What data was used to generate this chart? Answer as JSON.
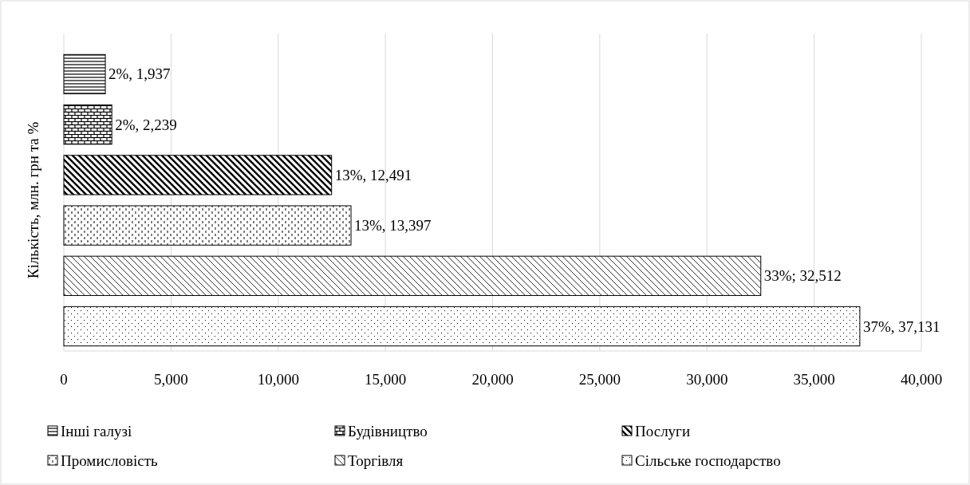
{
  "chart_data": {
    "type": "bar",
    "orientation": "horizontal",
    "ylabel": "Кількість, млн. грн та %",
    "categories": [
      null,
      null,
      null,
      null,
      null,
      null
    ],
    "series": [
      {
        "name": "Інші галузі",
        "color": "#000000",
        "values": [
          1937,
          null,
          null,
          null,
          null,
          null
        ],
        "value_labels": [
          "2%, 1,937",
          null,
          null,
          null,
          null,
          null
        ]
      },
      {
        "name": "Будівництво",
        "color": "#000000",
        "values": [
          null,
          2239,
          null,
          null,
          null,
          null
        ],
        "value_labels": [
          null,
          "2%, 2,239",
          null,
          null,
          null,
          null
        ]
      },
      {
        "name": "Послуги",
        "color": "#000000",
        "values": [
          null,
          null,
          12491,
          null,
          null,
          null
        ],
        "value_labels": [
          null,
          null,
          "13%, 12,491",
          null,
          null,
          null
        ]
      },
      {
        "name": "Промисловість",
        "color": "#000000",
        "values": [
          null,
          null,
          null,
          13397,
          null,
          null
        ],
        "value_labels": [
          null,
          null,
          null,
          "13%, 13,397",
          null,
          null
        ]
      },
      {
        "name": "Торгівля",
        "color": "#000000",
        "values": [
          null,
          null,
          null,
          null,
          32512,
          null
        ],
        "value_labels": [
          null,
          null,
          null,
          null,
          "33%; 32,512",
          null
        ]
      },
      {
        "name": "Сільське господарство",
        "color": "#000000",
        "values": [
          null,
          null,
          null,
          null,
          null,
          37131
        ],
        "value_labels": [
          null,
          null,
          null,
          null,
          null,
          "37%, 37,131"
        ]
      }
    ],
    "xlim": [
      0,
      40000
    ],
    "xticks": [
      0,
      {
        "value": 5000,
        "label": "5,000"
      },
      {
        "value": 10000,
        "label": "10,000"
      },
      {
        "value": 15000,
        "label": "15,000"
      },
      {
        "value": 20000,
        "label": "20,000"
      },
      {
        "value": 25000,
        "label": "25,000"
      },
      {
        "value": 30000,
        "label": "30,000"
      },
      {
        "value": 35000,
        "label": "35,000"
      },
      {
        "value": 40000,
        "label": "40,000"
      }
    ],
    "grid": "x",
    "legend": "bottom"
  }
}
